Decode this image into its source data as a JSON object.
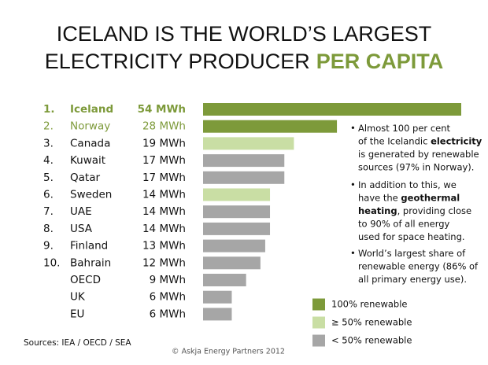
{
  "chart_data": {
    "type": "bar",
    "orientation": "horizontal",
    "title_line1": "ICELAND IS THE WORLD’S LARGEST",
    "title_line2": "ELECTRICITY PRODUCER",
    "title_highlight": "PER CAPITA",
    "highlight_color": "#7d9a3a",
    "ranks": [
      "1.",
      "2.",
      "3.",
      "4.",
      "5.",
      "6.",
      "7.",
      "8.",
      "9.",
      "10.",
      null,
      null,
      null
    ],
    "categories": [
      "Iceland",
      "Norway",
      "Canada",
      "Kuwait",
      "Qatar",
      "Sweden",
      "UAE",
      "USA",
      "Finland",
      "Bahrain",
      "OECD",
      "UK",
      "EU"
    ],
    "values": [
      54,
      28,
      19,
      17,
      17,
      14,
      14,
      14,
      13,
      12,
      9,
      6,
      6
    ],
    "value_labels": [
      "54 MWh",
      "28 MWh",
      "19 MWh",
      "17 MWh",
      "17 MWh",
      "14 MWh",
      "14 MWh",
      "14 MWh",
      "13 MWh",
      "12 MWh",
      "9 MWh",
      "6 MWh",
      "6 MWh"
    ],
    "colors": [
      "#7d9a3a",
      "#7d9a3a",
      "#c9dea4",
      "#a6a6a6",
      "#a6a6a6",
      "#c9dea4",
      "#a6a6a6",
      "#a6a6a6",
      "#a6a6a6",
      "#a6a6a6",
      "#a6a6a6",
      "#a6a6a6",
      "#a6a6a6"
    ],
    "legend": [
      {
        "name": "100% renewable",
        "color": "#7d9a3a"
      },
      {
        "name": "≥ 50% renewable",
        "color": "#c9dea4"
      },
      {
        "name": "< 50% renewable",
        "color": "#a6a6a6"
      }
    ],
    "annotations": [
      {
        "lines": [
          [
            {
              "text": "Almost 100 per cent",
              "bold": false
            }
          ],
          [
            {
              "text": "of the Icelandic ",
              "bold": false
            },
            {
              "text": "electricity",
              "bold": true
            }
          ],
          [
            {
              "text": "is generated by renewable",
              "bold": false
            }
          ],
          [
            {
              "text": "sources (97% in Norway).",
              "bold": false
            }
          ]
        ]
      },
      {
        "lines": [
          [
            {
              "text": "In addition to this, we",
              "bold": false
            }
          ],
          [
            {
              "text": "have the ",
              "bold": false
            },
            {
              "text": "geothermal",
              "bold": true
            }
          ],
          [
            {
              "text": "heating",
              "bold": true
            },
            {
              "text": ", providing close",
              "bold": false
            }
          ],
          [
            {
              "text": "to 90% of all energy",
              "bold": false
            }
          ],
          [
            {
              "text": "used for space heating.",
              "bold": false
            }
          ]
        ]
      },
      {
        "lines": [
          [
            {
              "text": "World’s largest share of",
              "bold": false
            }
          ],
          [
            {
              "text": "renewable energy (86% of",
              "bold": false
            }
          ],
          [
            {
              "text": "all primary energy use).",
              "bold": false
            }
          ]
        ]
      }
    ],
    "source": "Sources: IEA / OECD / SEA",
    "copyright": "© Askja Energy Partners 2012"
  }
}
